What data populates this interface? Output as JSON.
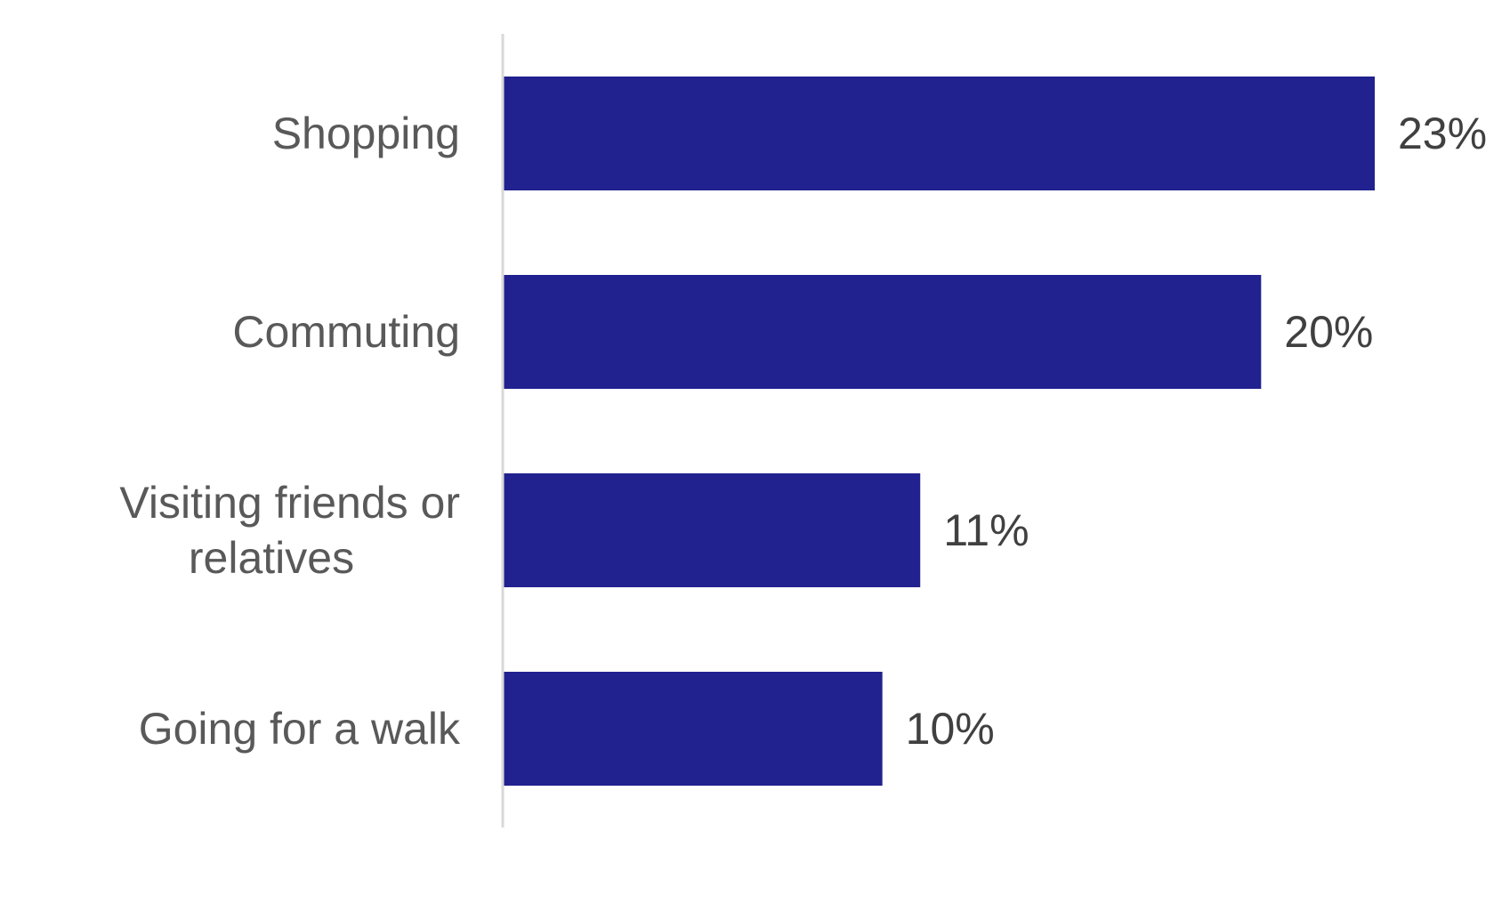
{
  "chart_data": {
    "type": "bar",
    "orientation": "horizontal",
    "categories": [
      [
        "Shopping"
      ],
      [
        "Commuting"
      ],
      [
        "Visiting friends or",
        "relatives"
      ],
      [
        "Going for a walk"
      ]
    ],
    "values": [
      23,
      20,
      11,
      10
    ],
    "value_labels": [
      "23%",
      "20%",
      "11%",
      "10%"
    ],
    "unit": "%",
    "xlim": [
      0,
      23
    ],
    "grid": false,
    "legend": "none",
    "title": "",
    "xlabel": "",
    "ylabel": "",
    "colors": {
      "bar": "#21218f",
      "axis": "#d9d9d9",
      "category_text": "#595959",
      "value_text": "#404040"
    }
  }
}
